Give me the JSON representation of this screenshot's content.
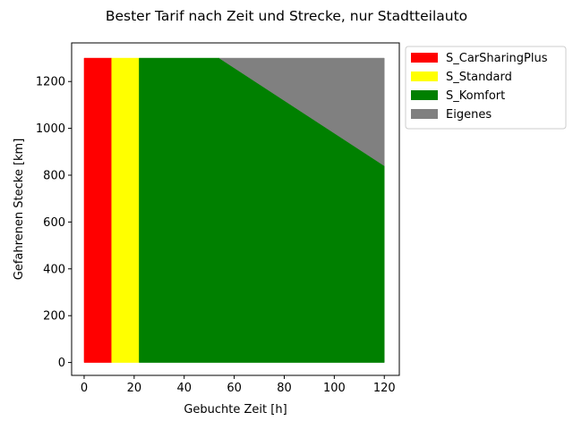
{
  "chart_data": {
    "type": "area",
    "title": "Bester Tarif nach Zeit und Strecke, nur Stadtteilauto",
    "xlabel": "Gebuchte Zeit [h]",
    "ylabel": "Gefahrenen Stecke [km]",
    "xlim": [
      -5,
      126
    ],
    "ylim": [
      -55,
      1365
    ],
    "x_ticks": [
      0,
      20,
      40,
      60,
      80,
      100,
      120
    ],
    "y_ticks": [
      0,
      200,
      400,
      600,
      800,
      1000,
      1200
    ],
    "grid": false,
    "legend_position": "outside-top-right",
    "regions": [
      {
        "name": "S_CarSharingPlus",
        "color": "#ff0000",
        "polygon": [
          [
            0,
            0
          ],
          [
            11,
            0
          ],
          [
            11,
            1300
          ],
          [
            0,
            1300
          ]
        ]
      },
      {
        "name": "S_Standard",
        "color": "#ffff00",
        "polygon": [
          [
            11,
            0
          ],
          [
            22,
            0
          ],
          [
            22,
            1300
          ],
          [
            11,
            1300
          ]
        ]
      },
      {
        "name": "S_Komfort",
        "color": "#008000",
        "polygon": [
          [
            22,
            0
          ],
          [
            120,
            0
          ],
          [
            120,
            840
          ],
          [
            54,
            1300
          ],
          [
            22,
            1300
          ]
        ]
      },
      {
        "name": "Eigenes",
        "color": "#808080",
        "polygon": [
          [
            54,
            1300
          ],
          [
            120,
            840
          ],
          [
            120,
            1300
          ]
        ]
      }
    ]
  }
}
